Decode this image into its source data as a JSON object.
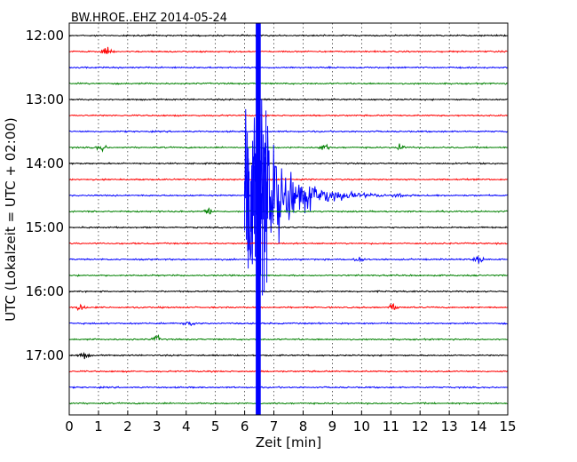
{
  "chart_data": {
    "type": "line",
    "title": "BW.HROE..EHZ 2014-05-24",
    "xlabel": "Zeit  [min]",
    "ylabel": "UTC (Lokalzeit = UTC + 02:00)",
    "xlim": [
      0,
      15
    ],
    "x_ticks": [
      0,
      1,
      2,
      3,
      4,
      5,
      6,
      7,
      8,
      9,
      10,
      11,
      12,
      13,
      14,
      15
    ],
    "y_ticks": [
      "12:00",
      "13:00",
      "14:00",
      "15:00",
      "16:00",
      "17:00"
    ],
    "grid": true,
    "trace_colors": [
      "#000000",
      "#ff0000",
      "#0000ff",
      "#008000"
    ],
    "line_interval_minutes": 15,
    "lines": [
      "12:00",
      "12:15",
      "12:30",
      "12:45",
      "13:00",
      "13:15",
      "13:30",
      "13:45",
      "14:00",
      "14:15",
      "14:30",
      "14:45",
      "15:00",
      "15:15",
      "15:30",
      "15:45",
      "16:00",
      "16:15",
      "16:30",
      "16:45",
      "17:00",
      "17:15",
      "17:30",
      "17:45"
    ],
    "event": {
      "trace_line": "14:30",
      "onset_min": 6.0,
      "peak_min": 6.45,
      "coda_end_min": 10.5
    },
    "minor_events": [
      {
        "line": "12:15",
        "x": 1.3
      },
      {
        "line": "13:45",
        "x": 1.1
      },
      {
        "line": "13:45",
        "x": 8.7
      },
      {
        "line": "13:45",
        "x": 11.3
      },
      {
        "line": "14:30",
        "x": 11.3
      },
      {
        "line": "14:45",
        "x": 4.8
      },
      {
        "line": "15:30",
        "x": 9.9
      },
      {
        "line": "15:30",
        "x": 14.0
      },
      {
        "line": "16:15",
        "x": 0.4
      },
      {
        "line": "16:15",
        "x": 11.1
      },
      {
        "line": "16:30",
        "x": 4.1
      },
      {
        "line": "16:45",
        "x": 3.0
      },
      {
        "line": "17:00",
        "x": 0.5
      }
    ]
  }
}
